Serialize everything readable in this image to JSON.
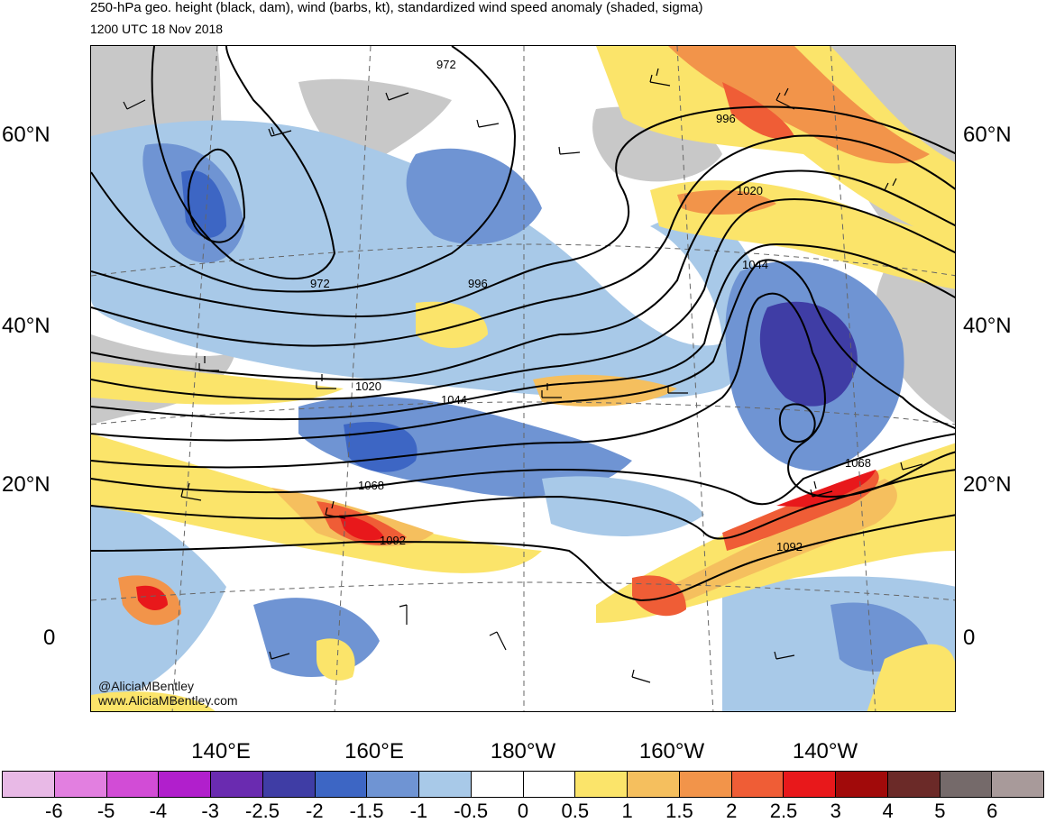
{
  "title": "250-hPa geo. height (black, dam), wind (barbs, kt), standardized wind speed anomaly (shaded, sigma)",
  "subtitle": "1200 UTC 18 Nov 2018",
  "credits": {
    "handle": "@AliciaMBentley",
    "website": "www.AliciaMBentley.com"
  },
  "lat_labels": [
    "60°N",
    "40°N",
    "20°N",
    "0"
  ],
  "lon_labels": [
    "140°E",
    "160°E",
    "180°W",
    "160°W",
    "140°W"
  ],
  "contour_labels": [
    "972",
    "972",
    "996",
    "996",
    "1020",
    "1020",
    "1044",
    "1044",
    "1068",
    "1068",
    "1092",
    "1092"
  ],
  "colorbar": {
    "ticks": [
      "-6",
      "-5",
      "-4",
      "-3",
      "-2.5",
      "-2",
      "-1.5",
      "-1",
      "-0.5",
      "0",
      "0.5",
      "1",
      "1.5",
      "2",
      "2.5",
      "3",
      "4",
      "5",
      "6"
    ],
    "colors": [
      "#e8b9e6",
      "#e27fe0",
      "#d24cd6",
      "#b11fcc",
      "#6a2bb0",
      "#3f3da5",
      "#3d66c4",
      "#6f94d3",
      "#a8c9e8",
      "#ffffff",
      "#ffffff",
      "#fbe46a",
      "#f5bf5e",
      "#f2944a",
      "#ef5d36",
      "#e8181b",
      "#a10a0a",
      "#6b2a28",
      "#756a6a",
      "#a89a9a"
    ]
  },
  "colors": {
    "land": "#c8c8c8",
    "neg_light": "#a8c9e8",
    "neg_mid": "#6f94d3",
    "neg_strong": "#3d66c4",
    "neg_deep": "#3f3da5",
    "pos_light": "#fbe46a",
    "pos_mid": "#f5bf5e",
    "pos_orange": "#f2944a",
    "pos_red": "#ef5d36",
    "pos_deep": "#e8181b"
  }
}
